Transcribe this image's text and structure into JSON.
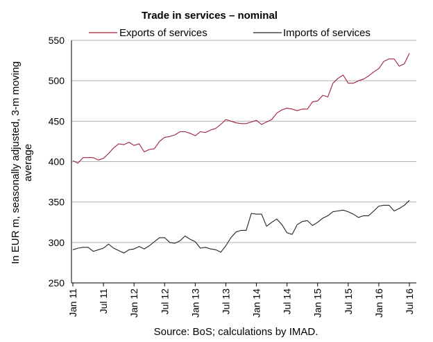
{
  "chart_data": {
    "type": "line",
    "title": "Trade in services – nominal",
    "xlabel": "",
    "ylabel": "In EUR m, seasonally adjusted, 3-m moving average",
    "ylim": [
      250,
      550
    ],
    "yticks": [
      250,
      300,
      350,
      400,
      450,
      500,
      550
    ],
    "grid": "horizontal",
    "legend": "top",
    "source": "Source: BoS; calculations by IMAD.",
    "x_tick_labels": [
      "Jan 11",
      "Jul 11",
      "Jan 12",
      "Jul 12",
      "Jan 13",
      "Jul 13",
      "Jan 14",
      "Jul 14",
      "Jan 15",
      "Jul 15",
      "Jan 16",
      "Jul 16"
    ],
    "x": [
      "2011-01",
      "2011-02",
      "2011-03",
      "2011-04",
      "2011-05",
      "2011-06",
      "2011-07",
      "2011-08",
      "2011-09",
      "2011-10",
      "2011-11",
      "2011-12",
      "2012-01",
      "2012-02",
      "2012-03",
      "2012-04",
      "2012-05",
      "2012-06",
      "2012-07",
      "2012-08",
      "2012-09",
      "2012-10",
      "2012-11",
      "2012-12",
      "2013-01",
      "2013-02",
      "2013-03",
      "2013-04",
      "2013-05",
      "2013-06",
      "2013-07",
      "2013-08",
      "2013-09",
      "2013-10",
      "2013-11",
      "2013-12",
      "2014-01",
      "2014-02",
      "2014-03",
      "2014-04",
      "2014-05",
      "2014-06",
      "2014-07",
      "2014-08",
      "2014-09",
      "2014-10",
      "2014-11",
      "2014-12",
      "2015-01",
      "2015-02",
      "2015-03",
      "2015-04",
      "2015-05",
      "2015-06",
      "2015-07",
      "2015-08",
      "2015-09",
      "2015-10",
      "2015-11",
      "2015-12",
      "2016-01",
      "2016-02",
      "2016-03",
      "2016-04",
      "2016-05",
      "2016-06",
      "2016-07"
    ],
    "series": [
      {
        "name": "Exports of services",
        "color": "#a0203a",
        "values": [
          401,
          398,
          405,
          405,
          405,
          402,
          404,
          410,
          417,
          422,
          421,
          424,
          420,
          422,
          412,
          415,
          416,
          425,
          430,
          431,
          433,
          437,
          437,
          435,
          432,
          437,
          436,
          439,
          441,
          446,
          452,
          450,
          448,
          447,
          447,
          449,
          451,
          446,
          449,
          452,
          460,
          464,
          466,
          465,
          463,
          465,
          465,
          474,
          475,
          482,
          480,
          497,
          503,
          507,
          497,
          497,
          500,
          502,
          506,
          511,
          515,
          524,
          527,
          527,
          518,
          521,
          534
        ]
      },
      {
        "name": "Imports of services",
        "color": "#222222",
        "values": [
          291,
          293,
          294,
          294,
          289,
          291,
          293,
          298,
          293,
          290,
          287,
          291,
          292,
          295,
          292,
          296,
          301,
          306,
          306,
          300,
          299,
          302,
          308,
          304,
          301,
          293,
          294,
          292,
          291,
          288,
          296,
          306,
          313,
          315,
          315,
          336,
          335,
          335,
          320,
          325,
          329,
          322,
          312,
          310,
          322,
          326,
          327,
          321,
          325,
          330,
          333,
          338,
          339,
          340,
          338,
          335,
          331,
          333,
          333,
          339,
          345,
          346,
          346,
          339,
          342,
          346,
          352
        ]
      }
    ]
  }
}
